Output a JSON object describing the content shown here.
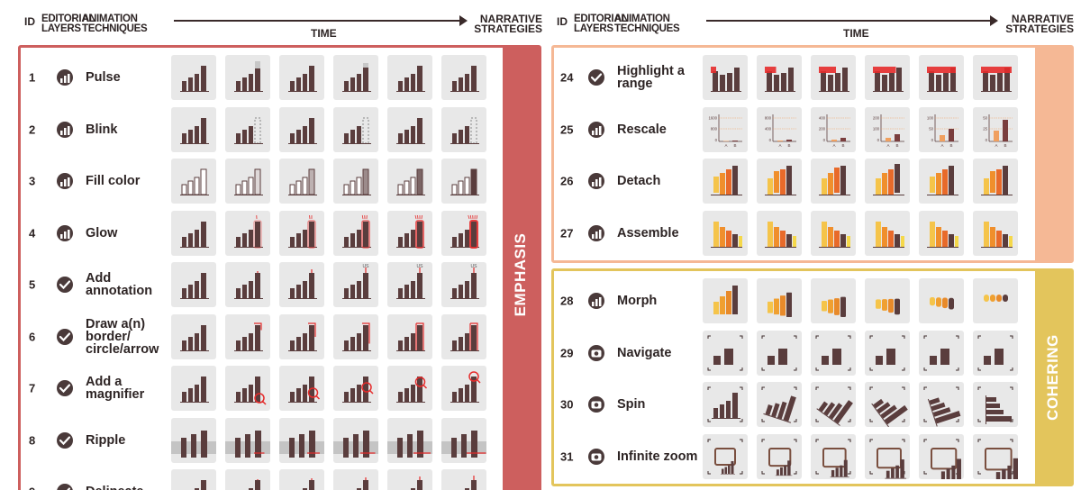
{
  "header_left": {
    "id_label": "ID",
    "layers_label": "EDITORIAL LAYERS",
    "techniques_label": "ANIMATION TECHNIQUES",
    "time_label": "TIME",
    "narrative_label": "NARRATIVE STRATEGIES"
  },
  "header_right": {
    "id_label": "ID",
    "layers_label": "EDITORIAL LAYERS",
    "techniques_label": "ANIMATION TECHNIQUES",
    "time_label": "TIME",
    "narrative_label": "NARRATIVE STRATEGIES"
  },
  "colors": {
    "emphasis": "#cd5f5e",
    "orange": "#f5b895",
    "cohering": "#e3c55c",
    "bar": "#5a3d3d",
    "highlight": "#e52b2b"
  },
  "emphasis": {
    "label": "EMPHASIS",
    "rows": [
      {
        "id": "1",
        "icon": "chart-layer-icon",
        "name": "Pulse",
        "effect": "pulse"
      },
      {
        "id": "2",
        "icon": "chart-layer-icon",
        "name": "Blink",
        "effect": "blink"
      },
      {
        "id": "3",
        "icon": "chart-layer-icon",
        "name": "Fill color",
        "effect": "fill"
      },
      {
        "id": "4",
        "icon": "chart-layer-icon",
        "name": "Glow",
        "effect": "glow"
      },
      {
        "id": "5",
        "icon": "annotation-layer-icon",
        "name": "Add annotation",
        "effect": "annotate",
        "note": "US"
      },
      {
        "id": "6",
        "icon": "annotation-layer-icon",
        "name": "Draw a(n) border/ circle/arrow",
        "effect": "border"
      },
      {
        "id": "7",
        "icon": "annotation-layer-icon",
        "name": "Add a magnifier",
        "effect": "magnifier"
      },
      {
        "id": "8",
        "icon": "annotation-layer-icon",
        "name": "Ripple",
        "effect": "ripple"
      },
      {
        "id": "9",
        "icon": "annotation-layer-icon",
        "name": "Delineate",
        "effect": "delineate"
      }
    ]
  },
  "orange_group": {
    "rows": [
      {
        "id": "24",
        "icon": "annotation-layer-icon",
        "name": "Highlight a range",
        "effect": "range"
      },
      {
        "id": "25",
        "icon": "chart-layer-icon",
        "name": "Rescale",
        "effect": "rescale",
        "scale_ticks": [
          [
            "1600",
            "800",
            "0"
          ],
          [
            "800",
            "400",
            "0"
          ],
          [
            "400",
            "200",
            "0"
          ],
          [
            "200",
            "100",
            "0"
          ],
          [
            "100",
            "50",
            "0"
          ],
          [
            "50",
            "25",
            "0"
          ]
        ],
        "axis_labels": [
          "A",
          "B"
        ]
      },
      {
        "id": "26",
        "icon": "chart-layer-icon",
        "name": "Detach",
        "effect": "detach"
      },
      {
        "id": "27",
        "icon": "chart-layer-icon",
        "name": "Assemble",
        "effect": "assemble"
      }
    ]
  },
  "cohering": {
    "label": "COHERING",
    "rows": [
      {
        "id": "28",
        "icon": "chart-layer-icon",
        "name": "Morph",
        "effect": "morph"
      },
      {
        "id": "29",
        "icon": "camera-layer-icon",
        "name": "Navigate",
        "effect": "navigate"
      },
      {
        "id": "30",
        "icon": "camera-layer-icon",
        "name": "Spin",
        "effect": "spin"
      },
      {
        "id": "31",
        "icon": "camera-layer-icon",
        "name": "Infinite zoom",
        "effect": "zoom"
      }
    ]
  }
}
